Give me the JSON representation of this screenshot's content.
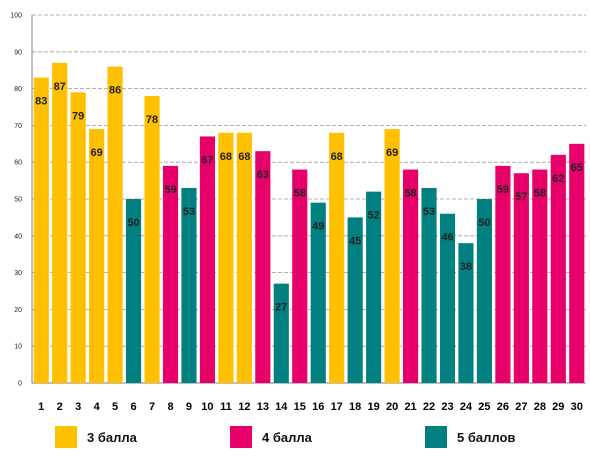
{
  "chart_data": {
    "type": "bar",
    "categories": [
      "1",
      "2",
      "3",
      "4",
      "5",
      "6",
      "7",
      "8",
      "9",
      "10",
      "11",
      "12",
      "13",
      "14",
      "15",
      "16",
      "17",
      "18",
      "19",
      "20",
      "21",
      "22",
      "23",
      "24",
      "25",
      "26",
      "27",
      "28",
      "29",
      "30"
    ],
    "values": [
      83,
      87,
      79,
      69,
      86,
      50,
      78,
      59,
      53,
      67,
      68,
      68,
      63,
      27,
      58,
      49,
      68,
      45,
      52,
      69,
      58,
      53,
      46,
      38,
      50,
      59,
      57,
      58,
      62,
      65
    ],
    "groups": [
      "3 балла",
      "3 балла",
      "3 балла",
      "3 балла",
      "3 балла",
      "5 баллов",
      "3 балла",
      "4 балла",
      "5 баллов",
      "4 балла",
      "3 балла",
      "3 балла",
      "4 балла",
      "5 баллов",
      "4 балла",
      "5 баллов",
      "3 балла",
      "5 баллов",
      "5 баллов",
      "3 балла",
      "4 балла",
      "5 баллов",
      "5 баллов",
      "5 баллов",
      "5 баллов",
      "4 балла",
      "4 балла",
      "4 балла",
      "4 балла",
      "4 балла"
    ],
    "ylim": [
      0,
      100
    ],
    "yticks": [
      0,
      10,
      20,
      30,
      40,
      50,
      60,
      70,
      80,
      90,
      100
    ],
    "grid": true,
    "legend_position": "bottom",
    "title": "",
    "xlabel": "",
    "ylabel": ""
  },
  "legend": [
    {
      "label": "3 балла",
      "color": "#FFC000"
    },
    {
      "label": "4 балла",
      "color": "#E8006A"
    },
    {
      "label": "5 баллов",
      "color": "#008080"
    }
  ]
}
